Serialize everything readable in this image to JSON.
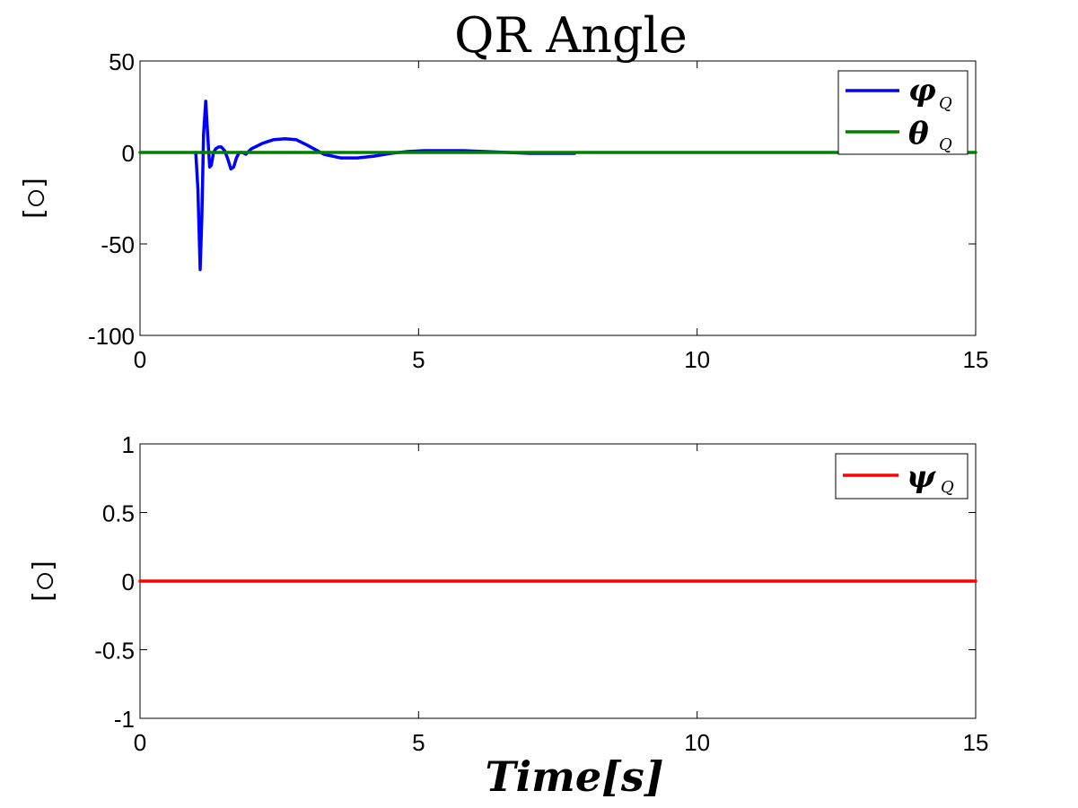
{
  "title": "QR Angle",
  "chart_data": [
    {
      "type": "line",
      "title": "QR Angle",
      "xlabel": "",
      "ylabel": "[○]",
      "xlim": [
        0,
        15
      ],
      "ylim": [
        -100,
        50
      ],
      "xticks": [
        "0",
        "5",
        "10",
        "15"
      ],
      "yticks": [
        "50",
        "0",
        "-50",
        "-100"
      ],
      "grid": false,
      "legend_position": "top-right",
      "series": [
        {
          "name": "φ_Q",
          "legend_main": "φ",
          "legend_sub": "Q",
          "color": "#0000ff",
          "x": [
            1.0,
            1.04,
            1.08,
            1.11,
            1.14,
            1.18,
            1.21,
            1.25,
            1.28,
            1.32,
            1.36,
            1.41,
            1.46,
            1.52,
            1.58,
            1.63,
            1.68,
            1.73,
            1.78,
            1.84,
            1.9,
            2.0,
            2.2,
            2.4,
            2.6,
            2.8,
            3.0,
            3.3,
            3.6,
            3.9,
            4.2,
            4.5,
            4.8,
            5.1,
            5.4,
            5.8,
            6.2,
            6.6,
            7.0,
            7.4,
            7.8
          ],
          "y": [
            0,
            -20,
            -64,
            -35,
            10,
            28,
            12,
            -8,
            -7,
            0,
            2,
            3,
            3,
            1,
            -4,
            -9,
            -8,
            -3,
            0,
            0,
            -1,
            2,
            5,
            7,
            7.5,
            7,
            4,
            -1,
            -3,
            -3,
            -2,
            -0.5,
            0.5,
            1,
            1,
            1,
            0.5,
            0,
            -0.5,
            -0.5,
            -0.5
          ]
        },
        {
          "name": "θ_Q",
          "legend_main": "θ",
          "legend_sub": "Q",
          "color": "#008000",
          "x": [
            0,
            15
          ],
          "y": [
            0,
            0
          ]
        }
      ]
    },
    {
      "type": "line",
      "xlabel": "Time[s]",
      "ylabel": "[○]",
      "xlim": [
        0,
        15
      ],
      "ylim": [
        -1,
        1
      ],
      "xticks": [
        "0",
        "5",
        "10",
        "15"
      ],
      "yticks": [
        "1",
        "0.5",
        "0",
        "-0.5",
        "-1"
      ],
      "grid": false,
      "legend_position": "top-right",
      "series": [
        {
          "name": "ψ_Q",
          "legend_main": "ψ",
          "legend_sub": "Q",
          "color": "#ff0000",
          "x": [
            0,
            15
          ],
          "y": [
            0,
            0
          ]
        }
      ]
    }
  ]
}
